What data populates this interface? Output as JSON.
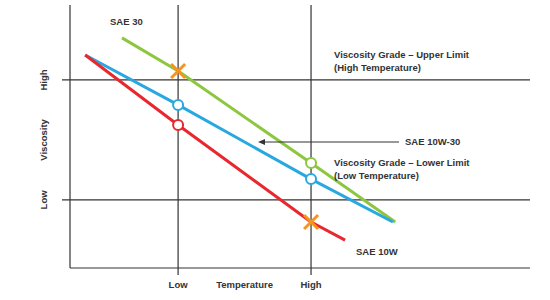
{
  "chart_data": {
    "type": "line",
    "x_label": "Temperature",
    "y_label": "Viscosity",
    "xlim": [
      0,
      100
    ],
    "ylim": [
      0,
      100
    ],
    "xticks": [
      {
        "value": 23.5,
        "label": "Low"
      },
      {
        "value": 52.4,
        "label": "High"
      }
    ],
    "yticks": [
      {
        "value": 25.9,
        "label": "Low"
      },
      {
        "value": 71.5,
        "label": "High"
      }
    ],
    "grid": true,
    "series": [
      {
        "name": "SAE 30",
        "type": "line",
        "color": "#8dc63f",
        "x": [
          11.3,
          23.5,
          52.4,
          70.7
        ],
        "values": [
          87.5,
          74.9,
          39.9,
          17.5
        ]
      },
      {
        "name": "SAE 10W-30",
        "type": "line",
        "color": "#29a8e0",
        "x": [
          3.3,
          23.5,
          52.4,
          70.2
        ],
        "values": [
          81.0,
          62.0,
          33.8,
          17.5
        ]
      },
      {
        "name": "SAE 10W",
        "type": "line",
        "color": "#e8272e",
        "x": [
          3.3,
          23.5,
          52.4,
          59.8
        ],
        "values": [
          81.0,
          54.4,
          17.5,
          10.6
        ]
      },
      {
        "type": "scatter",
        "marker": "x",
        "color": "#f7941d",
        "x": [
          23.5,
          52.4
        ],
        "values": [
          74.9,
          17.5
        ]
      },
      {
        "type": "scatter",
        "marker": "circle",
        "color": "#8dc63f",
        "x": [
          52.4
        ],
        "values": [
          39.9
        ]
      },
      {
        "type": "scatter",
        "marker": "circle",
        "color": "#29a8e0",
        "x": [
          23.5,
          52.4
        ],
        "values": [
          62.0,
          33.8
        ]
      },
      {
        "type": "scatter",
        "marker": "circle",
        "color": "#e8272e",
        "x": [
          23.5
        ],
        "values": [
          54.4
        ]
      }
    ],
    "annotations": [
      {
        "lines": [
          "Viscosity Grade – Upper Limit",
          "(High Temperature)"
        ]
      },
      {
        "lines": [
          "Viscosity Grade – Lower Limit",
          "(Low Temperature)"
        ]
      }
    ]
  }
}
